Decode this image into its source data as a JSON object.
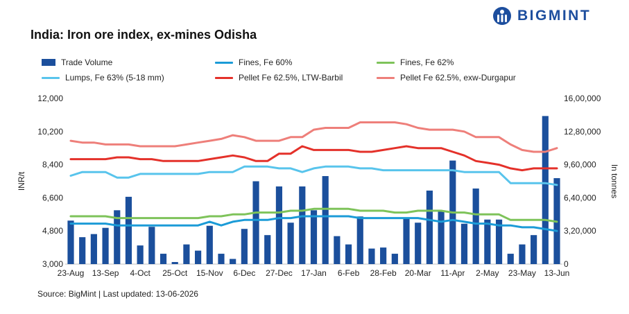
{
  "header": {
    "title": "India: Iron ore index, ex-mines Odisha",
    "logo_text": "BIGMINT",
    "brand_color": "#1d4e9e"
  },
  "footer": {
    "source": "Source: BigMint | Last updated: 13-06-2026"
  },
  "chart_data": {
    "type": "bar+line",
    "title": "India: Iron ore index, ex-mines Odisha",
    "ylabel": "INR/t",
    "y2label": "In tonnes",
    "ylim": [
      3000,
      12000
    ],
    "y2lim": [
      0,
      1600000
    ],
    "yticks": [
      "3,000",
      "4,800",
      "6,600",
      "8,400",
      "10,200",
      "12,000"
    ],
    "y2ticks": [
      "0",
      "3,20,000",
      "6,40,000",
      "9,60,000",
      "12,80,000",
      "16,00,000"
    ],
    "xtick_labels": [
      "23-Aug",
      "13-Sep",
      "4-Oct",
      "25-Oct",
      "15-Nov",
      "6-Dec",
      "27-Dec",
      "17-Jan",
      "6-Feb",
      "28-Feb",
      "20-Mar",
      "11-Apr",
      "2-May",
      "23-May",
      "13-Jun"
    ],
    "legend_placement": "top",
    "grid": false,
    "bars": {
      "name": "Trade Volume",
      "color": "#1b4f9c",
      "values": [
        420000,
        260000,
        290000,
        350000,
        520000,
        650000,
        180000,
        360000,
        100000,
        20000,
        190000,
        130000,
        370000,
        100000,
        50000,
        340000,
        800000,
        280000,
        750000,
        400000,
        750000,
        520000,
        850000,
        270000,
        190000,
        460000,
        150000,
        160000,
        100000,
        440000,
        400000,
        710000,
        520000,
        1000000,
        390000,
        730000,
        430000,
        430000,
        100000,
        190000,
        280000,
        1430000,
        830000
      ]
    },
    "series": [
      {
        "name": "Fines, Fe 60%",
        "color": "#1b9bd7",
        "values": [
          5200,
          5200,
          5200,
          5200,
          5100,
          5100,
          5100,
          5100,
          5100,
          5100,
          5100,
          5100,
          5300,
          5100,
          5300,
          5400,
          5400,
          5400,
          5500,
          5500,
          5600,
          5600,
          5600,
          5600,
          5600,
          5500,
          5500,
          5500,
          5500,
          5500,
          5500,
          5400,
          5300,
          5400,
          5300,
          5200,
          5200,
          5100,
          5100,
          5000,
          5000,
          4900,
          4800
        ]
      },
      {
        "name": "Fines, Fe 62%",
        "color": "#7ec35a",
        "values": [
          5600,
          5600,
          5600,
          5600,
          5500,
          5500,
          5500,
          5500,
          5500,
          5500,
          5500,
          5500,
          5600,
          5600,
          5700,
          5700,
          5800,
          5800,
          5800,
          5900,
          5900,
          6000,
          6000,
          6000,
          6000,
          5900,
          5900,
          5900,
          5800,
          5800,
          5900,
          5900,
          5900,
          5800,
          5800,
          5700,
          5700,
          5700,
          5400,
          5400,
          5400,
          5400,
          5300
        ]
      },
      {
        "name": "Lumps, Fe 63% (5-18 mm)",
        "color": "#58c4ec",
        "values": [
          7800,
          8000,
          8000,
          8000,
          7700,
          7700,
          7900,
          7900,
          7900,
          7900,
          7900,
          7900,
          8000,
          8000,
          8000,
          8300,
          8300,
          8300,
          8200,
          8200,
          8000,
          8200,
          8300,
          8300,
          8300,
          8200,
          8200,
          8100,
          8100,
          8100,
          8100,
          8100,
          8100,
          8100,
          8000,
          8000,
          8000,
          8000,
          7400,
          7400,
          7400,
          7400,
          7300
        ]
      },
      {
        "name": "Pellet Fe 62.5%, LTW-Barbil",
        "color": "#e4312a",
        "values": [
          8700,
          8700,
          8700,
          8700,
          8800,
          8800,
          8700,
          8700,
          8600,
          8600,
          8600,
          8600,
          8700,
          8800,
          8900,
          8800,
          8600,
          8600,
          9000,
          9000,
          9400,
          9200,
          9200,
          9200,
          9200,
          9100,
          9100,
          9200,
          9300,
          9400,
          9300,
          9300,
          9300,
          9100,
          8900,
          8600,
          8500,
          8400,
          8200,
          8100,
          8200,
          8200,
          8200
        ]
      },
      {
        "name": "Pellet Fe  62.5%, exw-Durgapur",
        "color": "#ee7f7a",
        "values": [
          9700,
          9600,
          9600,
          9500,
          9500,
          9500,
          9400,
          9400,
          9400,
          9400,
          9500,
          9600,
          9700,
          9800,
          10000,
          9900,
          9700,
          9700,
          9700,
          9900,
          9900,
          10300,
          10400,
          10400,
          10400,
          10700,
          10700,
          10700,
          10700,
          10600,
          10400,
          10300,
          10300,
          10300,
          10200,
          9900,
          9900,
          9900,
          9500,
          9200,
          9100,
          9100,
          9300
        ]
      }
    ]
  }
}
